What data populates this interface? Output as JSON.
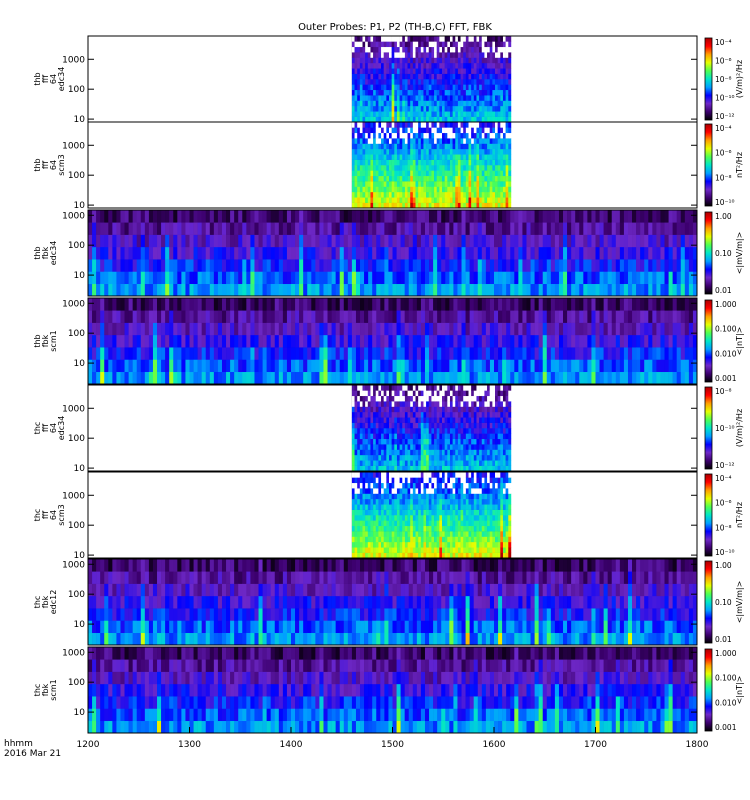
{
  "chart_data": {
    "type": "heatmap",
    "title": "Outer Probes: P1, P2 (TH-B,C) FFT, FBK",
    "x_axis": {
      "label_line1": "hhmm",
      "label_line2": "2016 Mar 21",
      "ticks": [
        "1200",
        "1300",
        "1400",
        "1500",
        "1600",
        "1700",
        "1800"
      ],
      "range_minutes": [
        720,
        1080
      ]
    },
    "colors": {
      "frame": "#000000",
      "no_data": "#ffffff",
      "background_low": "#000000"
    },
    "panels": [
      {
        "ylabel": [
          "thb",
          "fff",
          "64",
          "edc34"
        ],
        "yticks": [
          "10",
          "100",
          "1000"
        ],
        "yrange": [
          8,
          6000
        ],
        "colorbar_label": "(V/m)²/Hz",
        "colorbar_ticks": [
          "10⁻⁴",
          "10⁻⁶",
          "10⁻⁸",
          "10⁻¹⁰",
          "10⁻¹²"
        ],
        "data_interval": [
          "1436",
          "1610"
        ]
      },
      {
        "ylabel": [
          "thb",
          "fff",
          "64",
          "scm3"
        ],
        "yticks": [
          "10",
          "100",
          "1000"
        ],
        "yrange": [
          8,
          6000
        ],
        "colorbar_label": "nT²/Hz",
        "colorbar_ticks": [
          "10⁻⁴",
          "10⁻⁶",
          "10⁻⁸",
          "10⁻¹⁰"
        ],
        "data_interval": [
          "1436",
          "1610"
        ]
      },
      {
        "ylabel": [
          "thb",
          "fbk",
          "edc34"
        ],
        "yticks": [
          "10",
          "100",
          "1000"
        ],
        "yrange": [
          2,
          1500
        ],
        "colorbar_label": "<|mV/m|>",
        "colorbar_ticks": [
          "1.00",
          "0.10",
          "0.01"
        ],
        "data_interval": [
          "1200",
          "1800"
        ]
      },
      {
        "ylabel": [
          "thb",
          "fbk",
          "scm1"
        ],
        "yticks": [
          "10",
          "100",
          "1000"
        ],
        "yrange": [
          2,
          1500
        ],
        "colorbar_label": "<|nT|>",
        "colorbar_ticks": [
          "1.000",
          "0.100",
          "0.010",
          "0.001"
        ],
        "data_interval": [
          "1200",
          "1800"
        ]
      },
      {
        "ylabel": [
          "thc",
          "fff",
          "64",
          "edc34"
        ],
        "yticks": [
          "10",
          "100",
          "1000"
        ],
        "yrange": [
          8,
          6000
        ],
        "colorbar_label": "(V/m)²/Hz",
        "colorbar_ticks": [
          "10⁻⁸",
          "10⁻¹⁰",
          "10⁻¹²"
        ],
        "data_interval": [
          "1436",
          "1610"
        ]
      },
      {
        "ylabel": [
          "thc",
          "fff",
          "64",
          "scm3"
        ],
        "yticks": [
          "10",
          "100",
          "1000"
        ],
        "yrange": [
          8,
          6000
        ],
        "colorbar_label": "nT²/Hz",
        "colorbar_ticks": [
          "10⁻⁴",
          "10⁻⁶",
          "10⁻⁸",
          "10⁻¹⁰"
        ],
        "data_interval": [
          "1436",
          "1610"
        ]
      },
      {
        "ylabel": [
          "thc",
          "fbk",
          "edc12"
        ],
        "yticks": [
          "10",
          "100",
          "1000"
        ],
        "yrange": [
          2,
          1500
        ],
        "colorbar_label": "<|mV/m|>",
        "colorbar_ticks": [
          "1.00",
          "0.10",
          "0.01"
        ],
        "data_interval": [
          "1200",
          "1800"
        ]
      },
      {
        "ylabel": [
          "thc",
          "fbk",
          "scm1"
        ],
        "yticks": [
          "10",
          "100",
          "1000"
        ],
        "yrange": [
          2,
          1500
        ],
        "colorbar_label": "<|nT|>",
        "colorbar_ticks": [
          "1.000",
          "0.100",
          "0.010",
          "0.001"
        ],
        "data_interval": [
          "1200",
          "1800"
        ]
      }
    ]
  }
}
